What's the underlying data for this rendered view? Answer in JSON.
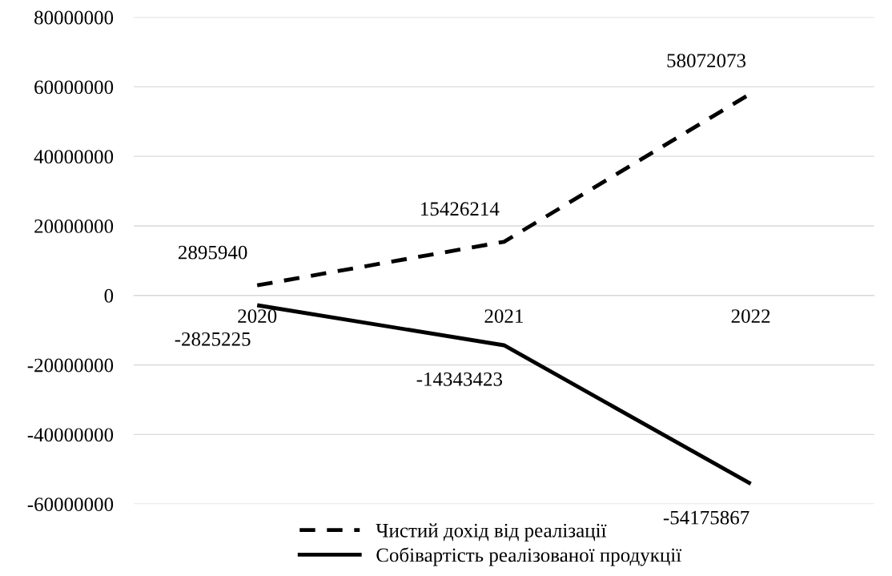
{
  "chart_data": {
    "type": "line",
    "categories": [
      "2020",
      "2021",
      "2022"
    ],
    "series": [
      {
        "name": "Чистий дохід від реалізації",
        "color": "#000000",
        "line_style": "dashed",
        "values": [
          2895940,
          15426214,
          58072073
        ]
      },
      {
        "name": "Собівартість реалізованої продукції",
        "color": "#000000",
        "line_style": "solid",
        "values": [
          -2825225,
          -14343423,
          -54175867
        ]
      }
    ],
    "ylim": [
      -60000000,
      80000000
    ],
    "yticks": [
      -60000000,
      -40000000,
      -20000000,
      0,
      20000000,
      40000000,
      60000000,
      80000000
    ],
    "grid": "y",
    "legend": "bottom",
    "data_labels": true,
    "marker": "none"
  }
}
